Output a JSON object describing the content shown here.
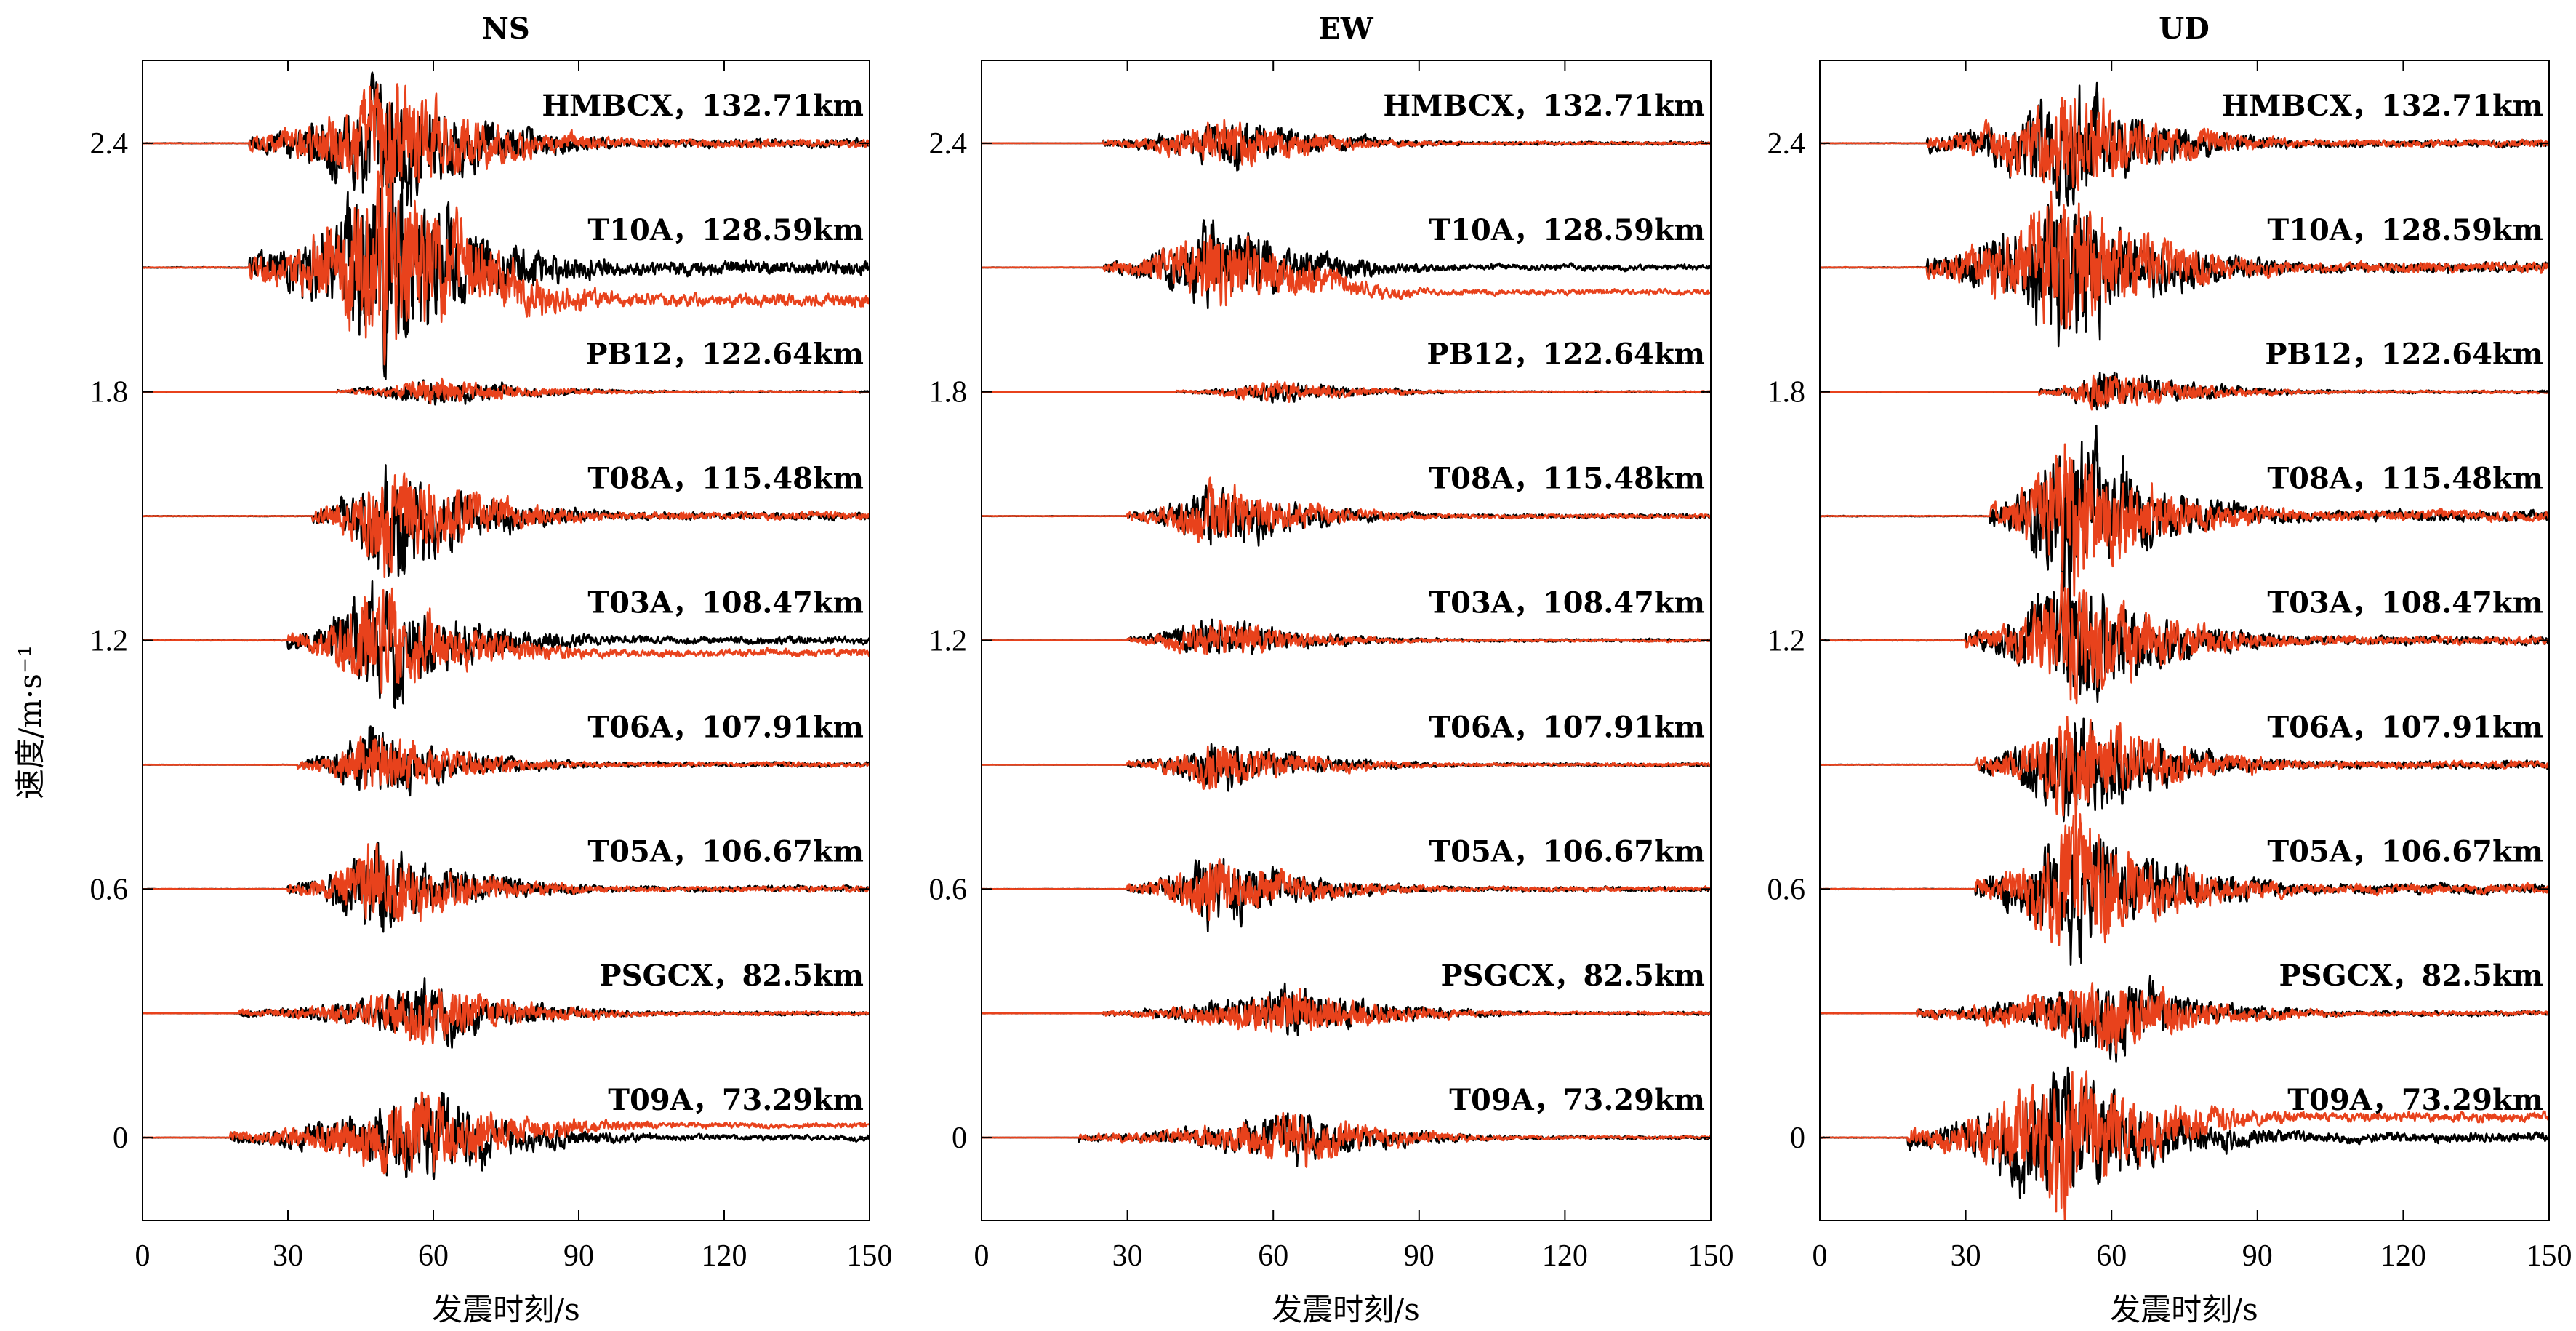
{
  "chart_data": [
    {
      "type": "line",
      "title": "NS",
      "xlabel": "发震时刻/s",
      "ylabel": "速度/m·s⁻¹",
      "xlim": [
        0,
        150
      ],
      "ylim": [
        -0.2,
        2.6
      ],
      "xticks": [
        0,
        30,
        60,
        90,
        120,
        150
      ],
      "yticks": [
        0,
        0.6,
        1.2,
        1.8,
        2.4
      ],
      "ytick_labels": [
        "0",
        "0.6",
        "1.2",
        "1.8",
        "2.4"
      ],
      "grid": false,
      "series_colors": {
        "observed": "#000000",
        "simulated": "#e8421c"
      },
      "traces": [
        {
          "station": "HMBCX",
          "distance": "132.71km",
          "label": "HMBCX，132.71km",
          "offset": 2.4,
          "onset_s": 22,
          "peak_s": 51,
          "amp": 0.18,
          "end_drift_black": 0.0,
          "end_drift_red": 0.0
        },
        {
          "station": "T10A",
          "distance": "128.59km",
          "label": "T10A，128.59km",
          "offset": 2.1,
          "onset_s": 22,
          "peak_s": 50,
          "amp": 0.28,
          "end_drift_black": 0.0,
          "end_drift_red": -0.08
        },
        {
          "station": "PB12",
          "distance": "122.64km",
          "label": "PB12，122.64km",
          "offset": 1.8,
          "onset_s": 40,
          "peak_s": 60,
          "amp": 0.04,
          "end_drift_black": 0.0,
          "end_drift_red": 0.0
        },
        {
          "station": "T08A",
          "distance": "115.48km",
          "label": "T08A，115.48km",
          "offset": 1.5,
          "onset_s": 35,
          "peak_s": 50,
          "amp": 0.16,
          "end_drift_black": 0.0,
          "end_drift_red": 0.0
        },
        {
          "station": "T03A",
          "distance": "108.47km",
          "label": "T03A，108.47km",
          "offset": 1.2,
          "onset_s": 30,
          "peak_s": 48,
          "amp": 0.16,
          "end_drift_black": 0.0,
          "end_drift_red": -0.03
        },
        {
          "station": "T06A",
          "distance": "107.91km",
          "label": "T06A，107.91km",
          "offset": 0.9,
          "onset_s": 32,
          "peak_s": 47,
          "amp": 0.1,
          "end_drift_black": 0.0,
          "end_drift_red": 0.0
        },
        {
          "station": "T05A",
          "distance": "106.67km",
          "label": "T05A，106.67km",
          "offset": 0.6,
          "onset_s": 30,
          "peak_s": 48,
          "amp": 0.12,
          "end_drift_black": 0.0,
          "end_drift_red": 0.0
        },
        {
          "station": "PSGCX",
          "distance": "82.5km",
          "label": "PSGCX，82.5km",
          "offset": 0.3,
          "onset_s": 20,
          "peak_s": 60,
          "amp": 0.08,
          "end_drift_black": 0.0,
          "end_drift_red": 0.0
        },
        {
          "station": "T09A",
          "distance": "73.29km",
          "label": "T09A，73.29km",
          "offset": 0.0,
          "onset_s": 18,
          "peak_s": 58,
          "amp": 0.12,
          "end_drift_black": 0.0,
          "end_drift_red": 0.03
        }
      ]
    },
    {
      "type": "line",
      "title": "EW",
      "xlabel": "发震时刻/s",
      "ylabel": "",
      "xlim": [
        0,
        150
      ],
      "ylim": [
        -0.2,
        2.6
      ],
      "xticks": [
        0,
        30,
        60,
        90,
        120,
        150
      ],
      "yticks": [
        0,
        0.6,
        1.2,
        1.8,
        2.4
      ],
      "ytick_labels": [
        "0",
        "0.6",
        "1.2",
        "1.8",
        "2.4"
      ],
      "grid": false,
      "series_colors": {
        "observed": "#000000",
        "simulated": "#e8421c"
      },
      "traces": [
        {
          "station": "HMBCX",
          "distance": "132.71km",
          "label": "HMBCX，132.71km",
          "offset": 2.4,
          "onset_s": 25,
          "peak_s": 50,
          "amp": 0.07,
          "end_drift_black": 0.0,
          "end_drift_red": 0.0
        },
        {
          "station": "T10A",
          "distance": "128.59km",
          "label": "T10A，128.59km",
          "offset": 2.1,
          "onset_s": 25,
          "peak_s": 48,
          "amp": 0.12,
          "end_drift_black": 0.0,
          "end_drift_red": -0.06
        },
        {
          "station": "PB12",
          "distance": "122.64km",
          "label": "PB12，122.64km",
          "offset": 1.8,
          "onset_s": 40,
          "peak_s": 60,
          "amp": 0.03,
          "end_drift_black": 0.0,
          "end_drift_red": 0.0
        },
        {
          "station": "T08A",
          "distance": "115.48km",
          "label": "T08A，115.48km",
          "offset": 1.5,
          "onset_s": 30,
          "peak_s": 47,
          "amp": 0.09,
          "end_drift_black": 0.0,
          "end_drift_red": 0.0
        },
        {
          "station": "T03A",
          "distance": "108.47km",
          "label": "T03A，108.47km",
          "offset": 1.2,
          "onset_s": 30,
          "peak_s": 47,
          "amp": 0.06,
          "end_drift_black": 0.0,
          "end_drift_red": 0.0
        },
        {
          "station": "T06A",
          "distance": "107.91km",
          "label": "T06A，107.91km",
          "offset": 0.9,
          "onset_s": 30,
          "peak_s": 48,
          "amp": 0.07,
          "end_drift_black": 0.0,
          "end_drift_red": 0.0
        },
        {
          "station": "T05A",
          "distance": "106.67km",
          "label": "T05A，106.67km",
          "offset": 0.6,
          "onset_s": 30,
          "peak_s": 47,
          "amp": 0.1,
          "end_drift_black": 0.0,
          "end_drift_red": 0.0
        },
        {
          "station": "PSGCX",
          "distance": "82.5km",
          "label": "PSGCX，82.5km",
          "offset": 0.3,
          "onset_s": 25,
          "peak_s": 65,
          "amp": 0.07,
          "end_drift_black": 0.0,
          "end_drift_red": 0.0
        },
        {
          "station": "T09A",
          "distance": "73.29km",
          "label": "T09A，73.29km",
          "offset": 0.0,
          "onset_s": 20,
          "peak_s": 65,
          "amp": 0.07,
          "end_drift_black": 0.0,
          "end_drift_red": 0.0
        }
      ]
    },
    {
      "type": "line",
      "title": "UD",
      "xlabel": "发震时刻/s",
      "ylabel": "",
      "xlim": [
        0,
        150
      ],
      "ylim": [
        -0.2,
        2.6
      ],
      "xticks": [
        0,
        30,
        60,
        90,
        120,
        150
      ],
      "yticks": [
        0,
        0.6,
        1.2,
        1.8,
        2.4
      ],
      "ytick_labels": [
        "0",
        "0.6",
        "1.2",
        "1.8",
        "2.4"
      ],
      "grid": false,
      "series_colors": {
        "observed": "#000000",
        "simulated": "#e8421c"
      },
      "traces": [
        {
          "station": "HMBCX",
          "distance": "132.71km",
          "label": "HMBCX，132.71km",
          "offset": 2.4,
          "onset_s": 22,
          "peak_s": 51,
          "amp": 0.16,
          "end_drift_black": 0.0,
          "end_drift_red": 0.0
        },
        {
          "station": "T10A",
          "distance": "128.59km",
          "label": "T10A，128.59km",
          "offset": 2.1,
          "onset_s": 22,
          "peak_s": 50,
          "amp": 0.22,
          "end_drift_black": 0.0,
          "end_drift_red": 0.0
        },
        {
          "station": "PB12",
          "distance": "122.64km",
          "label": "PB12，122.64km",
          "offset": 1.8,
          "onset_s": 45,
          "peak_s": 58,
          "amp": 0.06,
          "end_drift_black": 0.0,
          "end_drift_red": 0.0
        },
        {
          "station": "T08A",
          "distance": "115.48km",
          "label": "T08A，115.48km",
          "offset": 1.5,
          "onset_s": 35,
          "peak_s": 50,
          "amp": 0.22,
          "end_drift_black": 0.0,
          "end_drift_red": 0.0
        },
        {
          "station": "T03A",
          "distance": "108.47km",
          "label": "T03A，108.47km",
          "offset": 1.2,
          "onset_s": 30,
          "peak_s": 52,
          "amp": 0.18,
          "end_drift_black": 0.0,
          "end_drift_red": 0.0
        },
        {
          "station": "T06A",
          "distance": "107.91km",
          "label": "T06A，107.91km",
          "offset": 0.9,
          "onset_s": 32,
          "peak_s": 52,
          "amp": 0.16,
          "end_drift_black": 0.0,
          "end_drift_red": 0.0
        },
        {
          "station": "T05A",
          "distance": "106.67km",
          "label": "T05A，106.67km",
          "offset": 0.6,
          "onset_s": 32,
          "peak_s": 52,
          "amp": 0.2,
          "end_drift_black": 0.0,
          "end_drift_red": 0.0
        },
        {
          "station": "PSGCX",
          "distance": "82.5km",
          "label": "PSGCX，82.5km",
          "offset": 0.3,
          "onset_s": 20,
          "peak_s": 60,
          "amp": 0.1,
          "end_drift_black": 0.0,
          "end_drift_red": 0.0
        },
        {
          "station": "T09A",
          "distance": "73.29km",
          "label": "T09A，73.29km",
          "offset": 0.0,
          "onset_s": 18,
          "peak_s": 50,
          "amp": 0.2,
          "end_drift_black": 0.0,
          "end_drift_red": 0.05
        }
      ]
    }
  ]
}
